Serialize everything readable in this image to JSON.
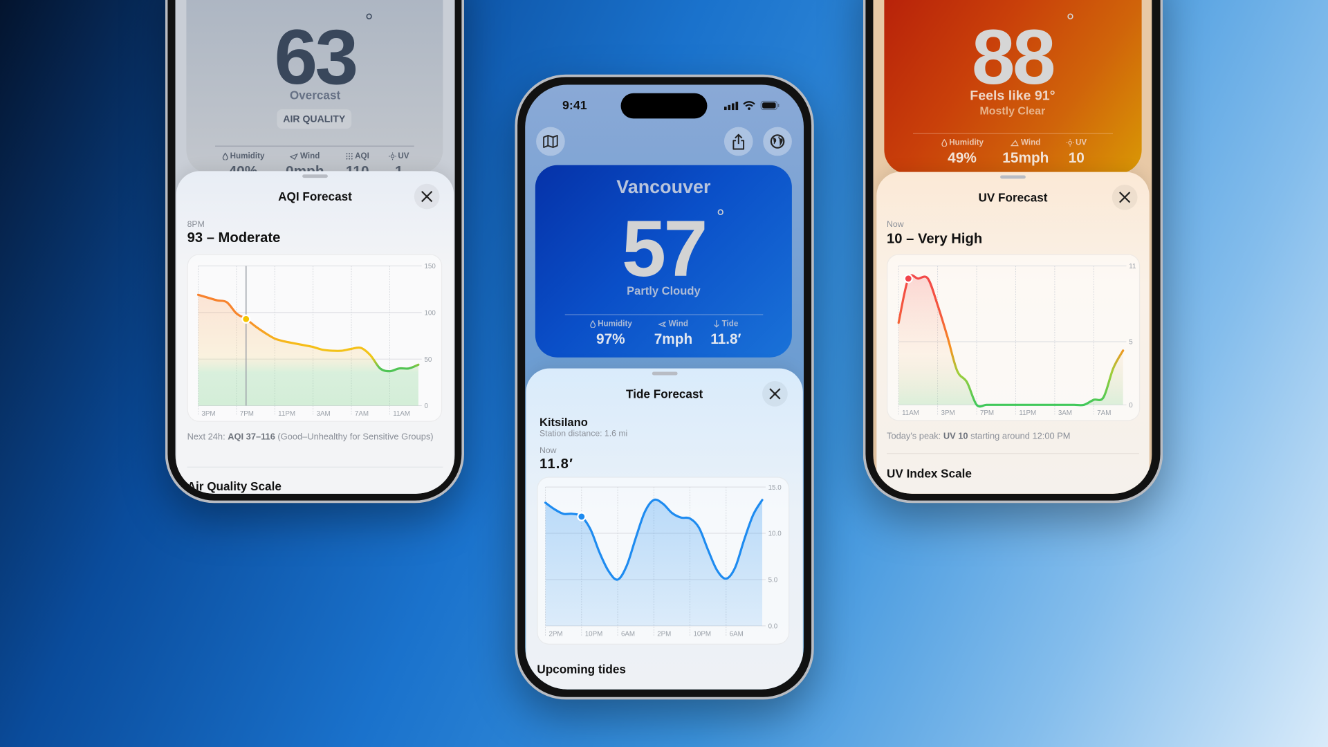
{
  "left_phone": {
    "temperature": "63",
    "degree": "°",
    "condition": "Overcast",
    "badge": "AIR QUALITY",
    "stats": [
      {
        "icon": "drop-icon",
        "label": "Humidity",
        "value": "40%"
      },
      {
        "icon": "wind-icon",
        "label": "Wind",
        "value": "0mph"
      },
      {
        "icon": "aqi-icon",
        "label": "AQI",
        "value": "110"
      },
      {
        "icon": "sun-icon",
        "label": "UV",
        "value": "1"
      }
    ],
    "sheet": {
      "title": "AQI Forecast",
      "time_label": "8PM",
      "headline": "93 – Moderate",
      "note_prefix": "Next 24h: ",
      "note_bold": "AQI 37–116",
      "note_suffix": " (Good–Unhealthy for Sensitive Groups)",
      "section_title": "Air Quality Scale"
    }
  },
  "center_phone": {
    "status_time": "9:41",
    "city": "Vancouver",
    "temperature": "57",
    "degree": "°",
    "condition": "Partly Cloudy",
    "stats": [
      {
        "icon": "drop-icon",
        "label": "Humidity",
        "value": "97%"
      },
      {
        "icon": "wind-icon",
        "label": "Wind",
        "value": "7mph"
      },
      {
        "icon": "arrow-down-icon",
        "label": "Tide",
        "value": "11.8′"
      }
    ],
    "sheet": {
      "title": "Tide Forecast",
      "station": "Kitsilano",
      "station_distance": "Station distance: 1.6 mi",
      "now_label": "Now",
      "now_value": "11.8′",
      "section_title": "Upcoming tides"
    }
  },
  "right_phone": {
    "temperature": "88",
    "degree": "°",
    "feels_like": "Feels like 91°",
    "condition": "Mostly Clear",
    "stats": [
      {
        "icon": "drop-icon",
        "label": "Humidity",
        "value": "49%"
      },
      {
        "icon": "wind-icon",
        "label": "Wind",
        "value": "15mph"
      },
      {
        "icon": "sun-icon",
        "label": "UV",
        "value": "10"
      }
    ],
    "sheet": {
      "title": "UV Forecast",
      "time_label": "Now",
      "headline": "10 – Very High",
      "note_prefix": "Today's peak: ",
      "note_bold": "UV 10",
      "note_suffix": " starting around 12:00 PM",
      "section_title": "UV Index Scale"
    }
  },
  "chart_data": [
    {
      "id": "aqi",
      "type": "area",
      "categories": [
        "3PM",
        "4PM",
        "5PM",
        "6PM",
        "7PM",
        "8PM",
        "9PM",
        "10PM",
        "11PM",
        "12AM",
        "1AM",
        "2AM",
        "3AM",
        "4AM",
        "5AM",
        "6AM",
        "7AM",
        "8AM",
        "9AM",
        "10AM",
        "11AM",
        "12PM",
        "1PM",
        "2PM"
      ],
      "values": [
        119,
        116,
        113,
        111,
        99,
        93,
        85,
        78,
        72,
        69,
        67,
        65,
        63,
        60,
        59,
        59,
        61,
        62,
        54,
        40,
        37,
        40,
        40,
        44
      ],
      "x_ticks": [
        "3PM",
        "7PM",
        "11PM",
        "3AM",
        "7AM",
        "11AM"
      ],
      "y_ticks": [
        0,
        50,
        100,
        150
      ],
      "ylim": [
        0,
        150
      ],
      "selected": {
        "category": "8PM",
        "value": 93
      },
      "line_colors": [
        {
          "value": 150,
          "color": "#f77b2e"
        },
        {
          "value": 95,
          "color": "#f7862c"
        },
        {
          "value": 65,
          "color": "#f6bd18"
        },
        {
          "value": 52,
          "color": "#f0c817"
        },
        {
          "value": 40,
          "color": "#4fc455"
        }
      ],
      "dot_color": "#f5c400",
      "grid": true
    },
    {
      "id": "tide",
      "type": "area",
      "categories": [
        "2PM",
        "4PM",
        "6PM",
        "8PM",
        "10PM",
        "12AM",
        "2AM",
        "4AM",
        "6AM",
        "8AM",
        "10AM",
        "12PM",
        "2PM",
        "4PM",
        "6PM",
        "8PM",
        "10PM",
        "12AM",
        "2AM",
        "4AM",
        "6AM",
        "8AM",
        "10AM",
        "12PM",
        "2PM"
      ],
      "values": [
        13.3,
        12.6,
        12.1,
        12.1,
        11.8,
        10.4,
        7.9,
        5.9,
        5.0,
        6.5,
        9.5,
        12.3,
        13.6,
        13.2,
        12.2,
        11.7,
        11.6,
        10.6,
        8.2,
        6.0,
        5.1,
        6.3,
        9.3,
        12.0,
        13.6
      ],
      "x_ticks": [
        "2PM",
        "10PM",
        "6AM",
        "2PM",
        "10PM",
        "6AM"
      ],
      "y_ticks": [
        "0.0",
        "5.0",
        "10.0",
        "15.0"
      ],
      "ylim": [
        0,
        15
      ],
      "selected": {
        "index": 4,
        "value": 11.8
      },
      "line_colors": [
        {
          "value": 15,
          "color": "#1e8bf0"
        },
        {
          "value": 0,
          "color": "#1e8bf0"
        }
      ],
      "dot_color": "#1e8bf0",
      "grid": true
    },
    {
      "id": "uv",
      "type": "area",
      "categories": [
        "11AM",
        "12PM",
        "1PM",
        "2PM",
        "3PM",
        "4PM",
        "5PM",
        "6PM",
        "7PM",
        "8PM",
        "9PM",
        "10PM",
        "11PM",
        "12AM",
        "1AM",
        "2AM",
        "3AM",
        "4AM",
        "5AM",
        "6AM",
        "7AM",
        "8AM",
        "9AM",
        "10AM"
      ],
      "values": [
        6.5,
        10,
        10,
        10,
        7.9,
        5.4,
        2.7,
        1.8,
        0,
        0,
        0,
        0,
        0,
        0,
        0,
        0,
        0,
        0,
        0,
        0,
        0.4,
        0.6,
        2.9,
        4.3
      ],
      "x_ticks": [
        "11AM",
        "3PM",
        "7PM",
        "11PM",
        "3AM",
        "7AM"
      ],
      "y_ticks": [
        0,
        5,
        11
      ],
      "ylim": [
        0,
        11
      ],
      "selected": {
        "category": "12PM",
        "value": 10
      },
      "line_colors": [
        {
          "value": 11,
          "color": "#f2434a"
        },
        {
          "value": 7,
          "color": "#f45a3c"
        },
        {
          "value": 4.5,
          "color": "#f7921f"
        },
        {
          "value": 2.5,
          "color": "#9fce3a"
        },
        {
          "value": 0,
          "color": "#40c85a"
        }
      ],
      "dot_color": "#f2434a",
      "grid": true
    }
  ]
}
